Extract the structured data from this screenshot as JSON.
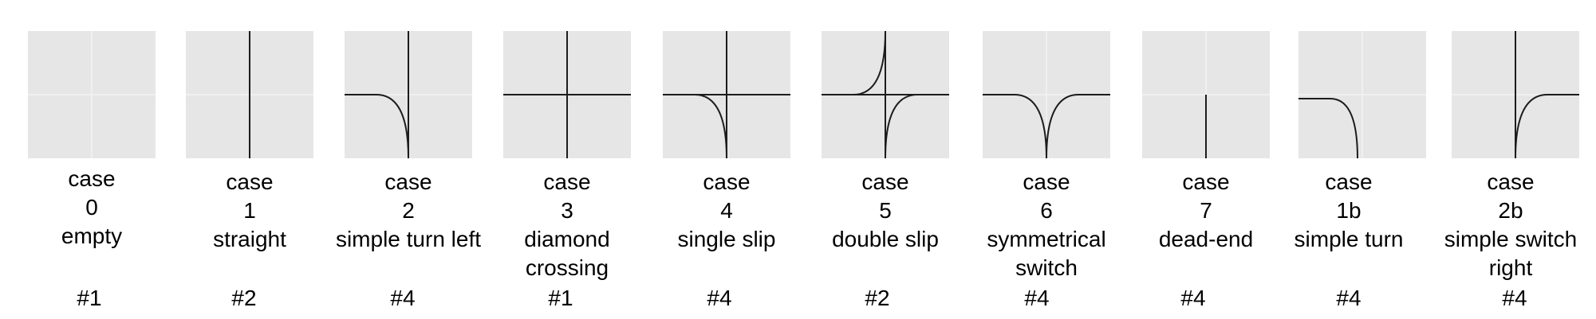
{
  "cases": [
    {
      "case_label": "case",
      "id": "0",
      "name": "empty",
      "count": "#1"
    },
    {
      "case_label": "case",
      "id": "1",
      "name": "straight",
      "count": "#2"
    },
    {
      "case_label": "case",
      "id": "2",
      "name": "simple turn left",
      "count": "#4"
    },
    {
      "case_label": "case",
      "id": "3",
      "name": "diamond crossing",
      "count": "#1"
    },
    {
      "case_label": "case",
      "id": "4",
      "name": "single slip",
      "count": "#4"
    },
    {
      "case_label": "case",
      "id": "5",
      "name": "double slip",
      "count": "#2"
    },
    {
      "case_label": "case",
      "id": "6",
      "name": "symmetrical switch",
      "count": "#4"
    },
    {
      "case_label": "case",
      "id": "7",
      "name": "dead-end",
      "count": "#4"
    },
    {
      "case_label": "case",
      "id": "1b",
      "name": "simple turn",
      "count": "#4"
    },
    {
      "case_label": "case",
      "id": "2b",
      "name": "simple switch right",
      "count": "#4"
    }
  ]
}
